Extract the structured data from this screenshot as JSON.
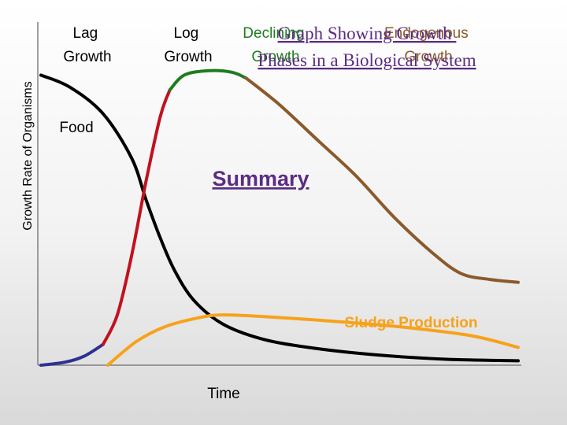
{
  "chart_data": {
    "type": "line",
    "title_lines": [
      "Graph Showing Growth",
      "Phases in a Biological System"
    ],
    "xlabel": "Time",
    "ylabel": "Growth Rate of Organisms",
    "link_label": "Summary",
    "phase_labels": [
      {
        "name": "lag",
        "lines": [
          "Lag",
          "Growth"
        ]
      },
      {
        "name": "log",
        "lines": [
          "Log",
          "Growth"
        ]
      },
      {
        "name": "declining",
        "lines": [
          "Declining",
          "Growth"
        ]
      },
      {
        "name": "endogenous",
        "lines": [
          "Endogenous",
          "Growth"
        ]
      }
    ],
    "xlim": [
      0,
      100
    ],
    "ylim": [
      0,
      100
    ],
    "grid": false,
    "series": [
      {
        "name": "Food",
        "color": "#000000",
        "points": [
          [
            0,
            98
          ],
          [
            6,
            94
          ],
          [
            13,
            85
          ],
          [
            19,
            70
          ],
          [
            22,
            56
          ],
          [
            25,
            43
          ],
          [
            28,
            32
          ],
          [
            32,
            22
          ],
          [
            38,
            14
          ],
          [
            46,
            9
          ],
          [
            56,
            6
          ],
          [
            70,
            3.5
          ],
          [
            85,
            2
          ],
          [
            100,
            1.5
          ]
        ]
      },
      {
        "name": "Lag Growth",
        "color": "#2e3192",
        "points": [
          [
            0,
            0
          ],
          [
            5,
            1
          ],
          [
            9,
            3
          ],
          [
            13,
            7
          ]
        ]
      },
      {
        "name": "Log Growth",
        "color": "#c1121f",
        "points": [
          [
            13,
            7
          ],
          [
            16,
            17
          ],
          [
            19,
            37
          ],
          [
            22,
            62
          ],
          [
            25,
            84
          ],
          [
            27,
            93
          ]
        ]
      },
      {
        "name": "Declining Growth",
        "color": "#1e7d1e",
        "points": [
          [
            27,
            93
          ],
          [
            30,
            98
          ],
          [
            35,
            99.5
          ],
          [
            40,
            99
          ],
          [
            43,
            97
          ]
        ]
      },
      {
        "name": "Endogenous Growth",
        "color": "#8b5a2b",
        "points": [
          [
            43,
            97
          ],
          [
            50,
            88
          ],
          [
            58,
            76
          ],
          [
            66,
            64
          ],
          [
            74,
            50
          ],
          [
            82,
            38
          ],
          [
            88,
            31
          ],
          [
            94,
            29
          ],
          [
            100,
            28
          ]
        ]
      },
      {
        "name": "Sludge Production",
        "color": "#f7a21b",
        "points": [
          [
            14,
            0
          ],
          [
            20,
            8
          ],
          [
            26,
            13
          ],
          [
            33,
            16
          ],
          [
            38,
            17
          ],
          [
            46,
            16.5
          ],
          [
            60,
            15
          ],
          [
            75,
            13
          ],
          [
            90,
            10
          ],
          [
            100,
            6
          ]
        ]
      }
    ]
  },
  "colors": {
    "title": "#5b2c83",
    "link": "#5b2c83",
    "declining_label": "#1e7d1e",
    "endogenous_label": "#8b5a2b",
    "sludge_label": "#f7a21b",
    "axis": "#808080",
    "text": "#000000"
  }
}
